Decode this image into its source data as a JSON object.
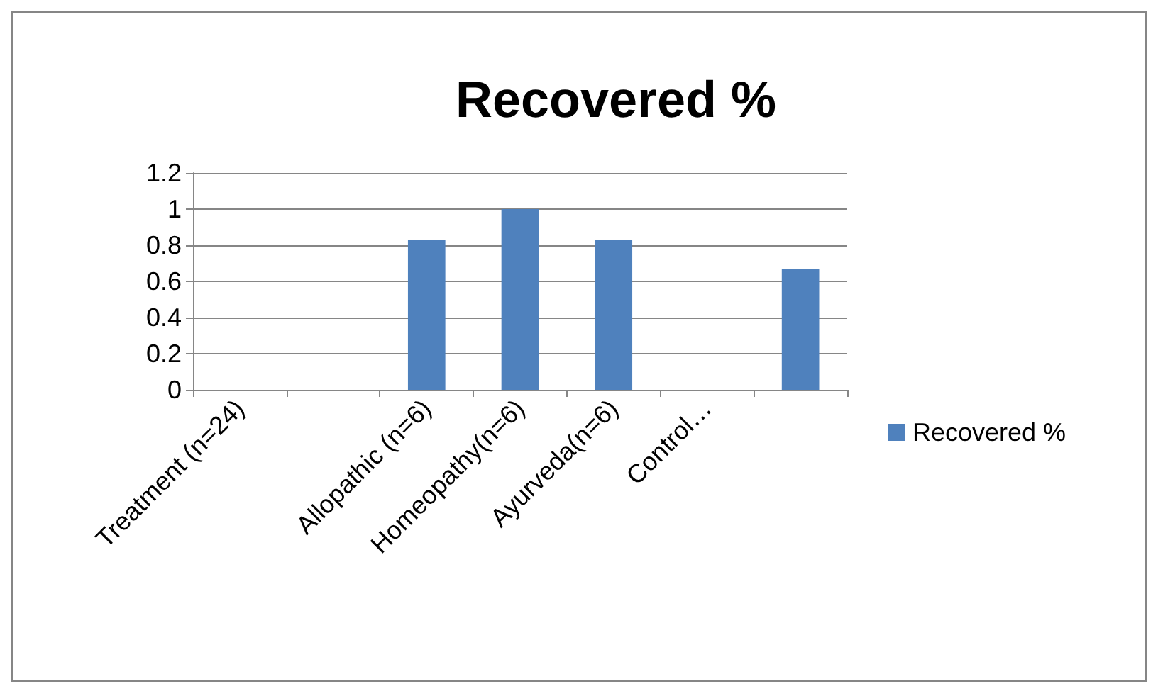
{
  "chart_data": {
    "type": "bar",
    "title": "Recovered %",
    "categories": [
      "Treatment (n=24)",
      null,
      "Allopathic (n=6)",
      "Homeopathy(n=6)",
      "Ayurveda(n=6)",
      "Control…",
      null
    ],
    "series": [
      {
        "name": "Recovered %",
        "color": "#4f81bd",
        "values": [
          null,
          null,
          0.83,
          1,
          0.83,
          null,
          0.67
        ]
      }
    ],
    "ylim": [
      0,
      1.2
    ],
    "yticks": [
      0,
      0.2,
      0.4,
      0.6,
      0.8,
      1,
      1.2
    ],
    "grid": "y",
    "legend": "right"
  }
}
